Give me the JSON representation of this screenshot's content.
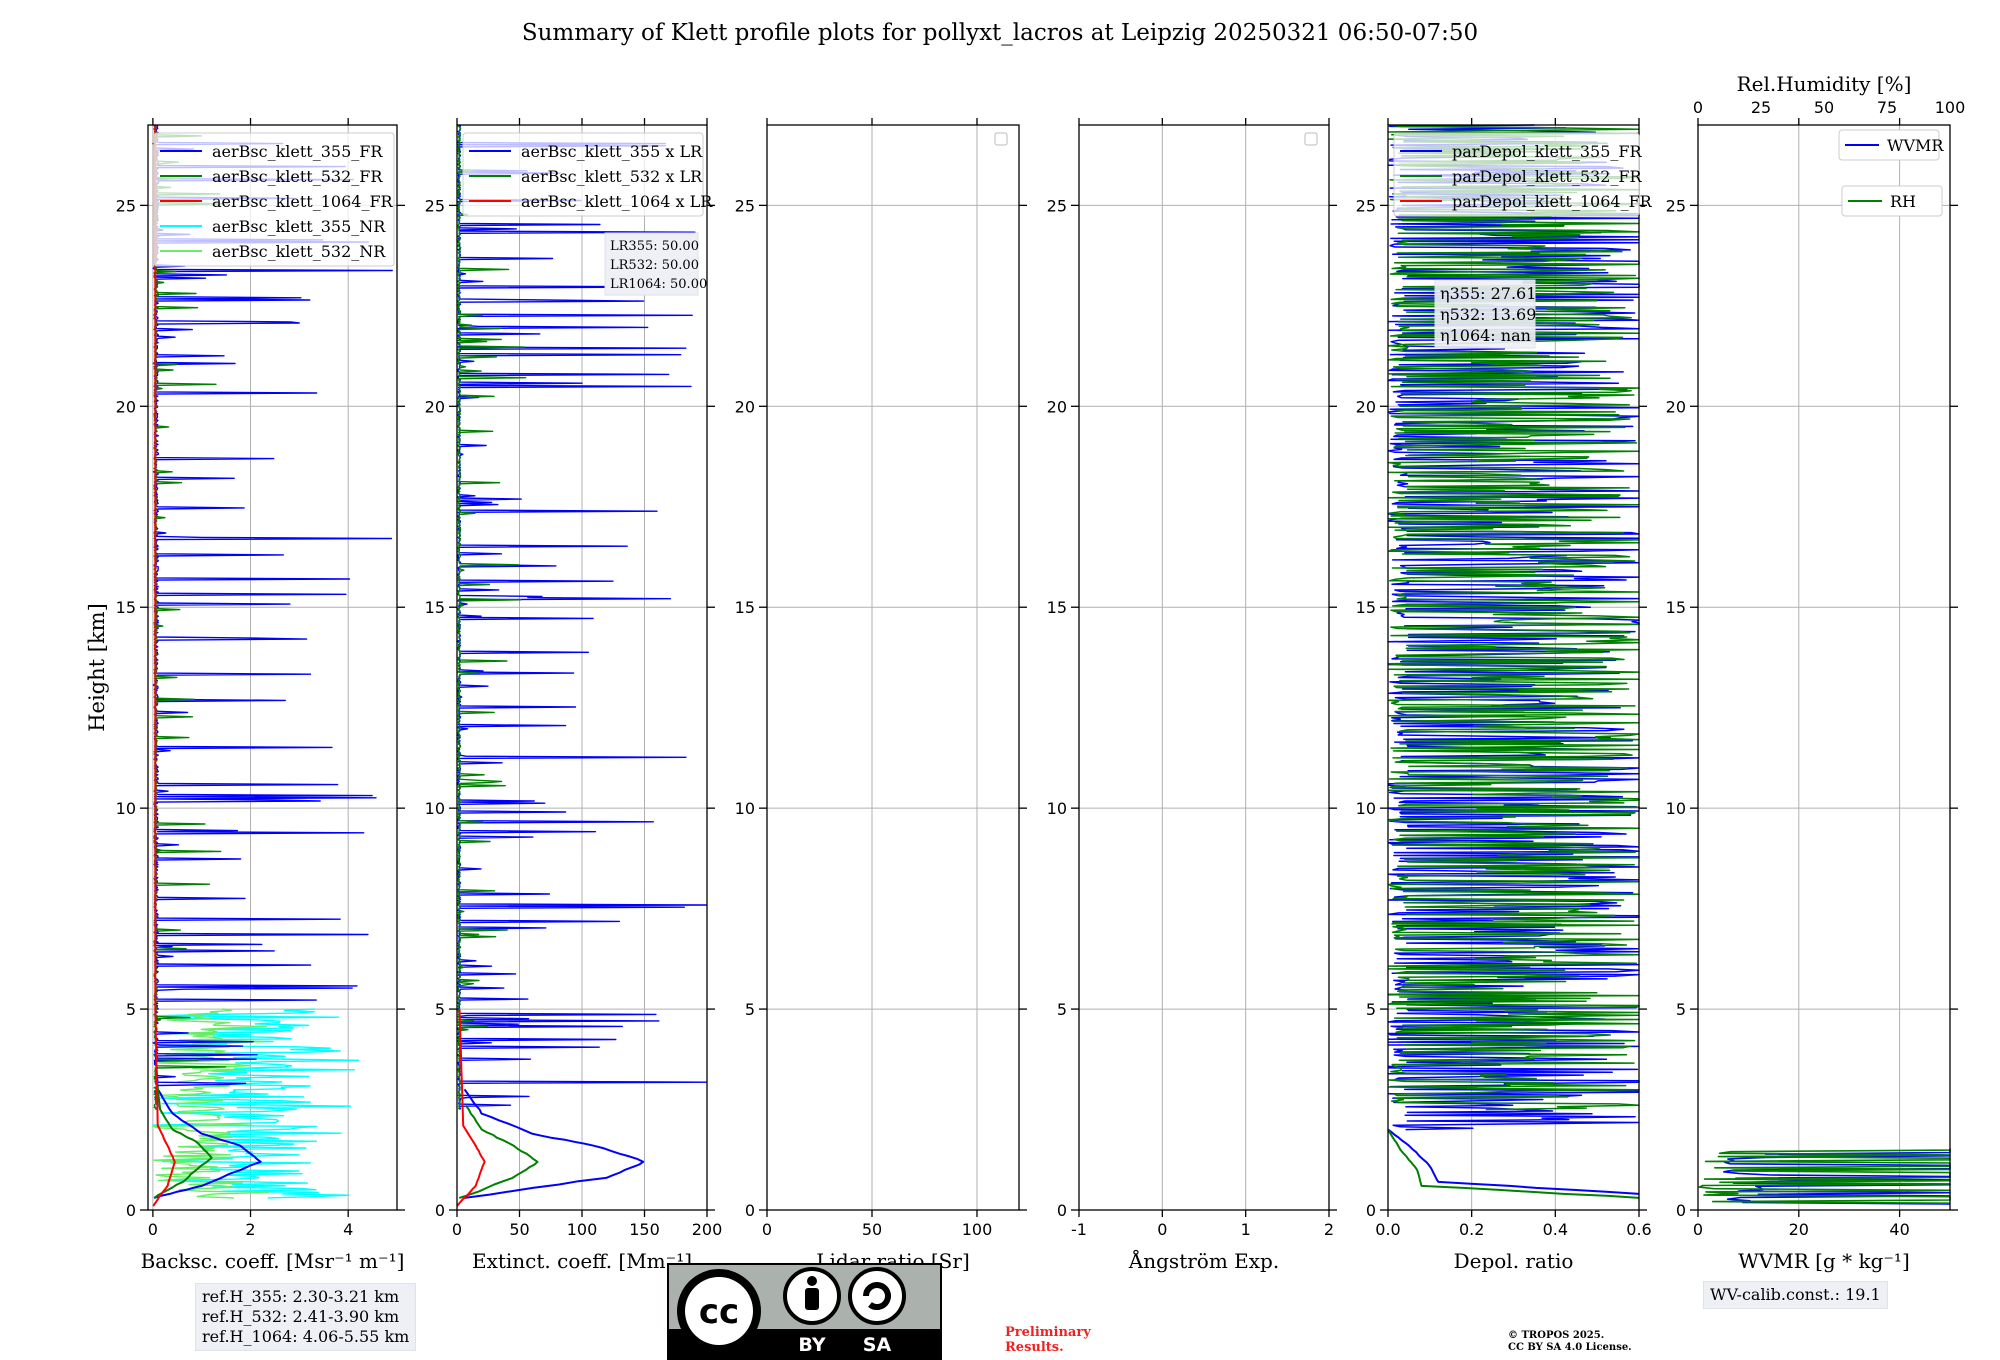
{
  "title": "Summary of Klett profile plots for pollyxt_lacros at Leipzig 20250321 06:50-07:50",
  "ylabel": "Height [km]",
  "ylim": [
    0,
    27
  ],
  "yticks": [
    0,
    5,
    10,
    15,
    20,
    25
  ],
  "colors": {
    "blue": "#0000ff",
    "green": "#008000",
    "red": "#ff0000",
    "cyan": "#00ffff",
    "lightgreen": "#66ee66"
  },
  "panels": [
    {
      "id": "backscatter",
      "xlabel": "Backsc. coeff. [Msr⁻¹ m⁻¹]",
      "xlim": [
        -0.1,
        5.0
      ],
      "xticks": [
        0,
        2,
        4
      ],
      "legend": [
        "aerBsc_klett_355_FR",
        "aerBsc_klett_532_FR",
        "aerBsc_klett_1064_FR",
        "aerBsc_klett_355_NR",
        "aerBsc_klett_532_NR"
      ]
    },
    {
      "id": "extinction",
      "xlabel": "Extinct. coeff. [Mm⁻¹]",
      "xlim": [
        0,
        200
      ],
      "xticks": [
        0,
        50,
        100,
        150,
        200
      ],
      "legend": [
        "aerBsc_klett_355 x LR",
        "aerBsc_klett_532 x LR",
        "aerBsc_klett_1064 x LR"
      ],
      "lr_box": [
        "LR355: 50.00",
        "LR532: 50.00",
        "LR1064: 50.00"
      ]
    },
    {
      "id": "lidar-ratio",
      "xlabel": "Lidar ratio [Sr]",
      "xlim": [
        0,
        120
      ],
      "xticks": [
        0,
        50,
        100
      ]
    },
    {
      "id": "angstrom",
      "xlabel": "Ångström Exp.",
      "xlim": [
        -1,
        2
      ],
      "xticks": [
        -1,
        0,
        1,
        2
      ]
    },
    {
      "id": "depol",
      "xlabel": "Depol. ratio",
      "xlim": [
        0.0,
        0.6
      ],
      "xticks": [
        "0.0",
        "0.2",
        "0.4",
        "0.6"
      ],
      "legend": [
        "parDepol_klett_355_FR",
        "parDepol_klett_532_FR",
        "parDepol_klett_1064_FR"
      ],
      "eta_box": [
        "η355: 27.61",
        "η532: 13.69",
        "η1064: nan"
      ]
    },
    {
      "id": "wvmr",
      "xlabel": "WVMR [g * kg⁻¹]",
      "xlim": [
        0,
        50
      ],
      "xticks": [
        0,
        20,
        40
      ],
      "top_xlabel": "Rel.Humidity [%]",
      "top_xticks": [
        0,
        25,
        50,
        75,
        100
      ],
      "legend": [
        "WVMR",
        "RH"
      ]
    }
  ],
  "chart_data": {
    "type": "line",
    "title": "Summary of Klett profile plots for pollyxt_lacros at Leipzig 20250321 06:50-07:50",
    "ylabel": "Height [km]",
    "ylim": [
      0,
      27
    ],
    "grid": true,
    "panels": [
      {
        "xlabel": "Backsc. coeff. [Msr⁻¹ m⁻¹]",
        "xlim": [
          -0.1,
          5.0
        ],
        "series": [
          {
            "name": "aerBsc_klett_355_FR",
            "x": [
              0.02,
              1.0,
              2.2,
              1.8,
              1.0,
              0.4,
              0.1,
              0.05
            ],
            "y": [
              0.3,
              0.6,
              1.2,
              1.6,
              1.9,
              2.4,
              3.0,
              4.0
            ]
          },
          {
            "name": "aerBsc_klett_532_FR",
            "x": [
              0.02,
              0.6,
              1.2,
              0.9,
              0.4,
              0.15,
              0.05
            ],
            "y": [
              0.3,
              0.7,
              1.3,
              1.7,
              2.0,
              2.5,
              3.5
            ]
          },
          {
            "name": "aerBsc_klett_1064_FR",
            "x": [
              0.0,
              0.3,
              0.45,
              0.3,
              0.1,
              0.05,
              0.05
            ],
            "y": [
              0.1,
              0.6,
              1.2,
              1.6,
              2.1,
              5.0,
              27.0
            ]
          },
          {
            "name": "aerBsc_klett_355_NR",
            "x": [
              4.7,
              2.0,
              2.5,
              3.5,
              3.8,
              4.8
            ],
            "y": [
              0.2,
              1.0,
              2.5,
              3.5,
              4.3,
              5.0
            ]
          },
          {
            "name": "aerBsc_klett_532_NR",
            "x": [
              1.8,
              1.0,
              1.2,
              1.5,
              1.6
            ],
            "y": [
              0.3,
              1.2,
              2.6,
              4.0,
              5.0
            ]
          }
        ]
      },
      {
        "xlabel": "Extinct. coeff. [Mm⁻¹]",
        "xlim": [
          0,
          200
        ],
        "series": [
          {
            "name": "aerBsc_klett_355 x LR",
            "x": [
              3,
              120,
              150,
              110,
              60,
              20,
              6
            ],
            "y": [
              0.3,
              0.8,
              1.2,
              1.6,
              1.9,
              2.4,
              3.0
            ]
          },
          {
            "name": "aerBsc_klett_532 x LR",
            "x": [
              3,
              45,
              65,
              45,
              20,
              7
            ],
            "y": [
              0.3,
              0.8,
              1.2,
              1.6,
              2.0,
              2.6
            ]
          },
          {
            "name": "aerBsc_klett_1064 x LR",
            "x": [
              0,
              15,
              22,
              15,
              5,
              2
            ],
            "y": [
              0.1,
              0.6,
              1.2,
              1.6,
              2.1,
              5.0
            ]
          }
        ]
      },
      {
        "xlabel": "Lidar ratio [Sr]",
        "xlim": [
          0,
          120
        ],
        "series": []
      },
      {
        "xlabel": "Ångström Exp.",
        "xlim": [
          -1,
          2
        ],
        "series": []
      },
      {
        "xlabel": "Depol. ratio",
        "xlim": [
          0.0,
          0.6
        ],
        "series": [
          {
            "name": "parDepol_klett_355_FR",
            "x": [
              0.6,
              0.12,
              0.1,
              0.05,
              0.0
            ],
            "y": [
              0.4,
              0.7,
              1.1,
              1.6,
              2.0
            ]
          },
          {
            "name": "parDepol_klett_532_FR",
            "x": [
              0.6,
              0.08,
              0.07,
              0.03,
              0.0
            ],
            "y": [
              0.3,
              0.6,
              1.0,
              1.5,
              2.0
            ]
          },
          {
            "name": "parDepol_klett_1064_FR",
            "x": [],
            "y": []
          }
        ]
      },
      {
        "xlabel": "WVMR [g * kg⁻¹]",
        "xlim": [
          0,
          50
        ],
        "series": [
          {
            "name": "WVMR",
            "x": [
              50,
              5,
              45,
              3
            ],
            "y": [
              0.2,
              0.6,
              1.0,
              1.5
            ]
          },
          {
            "name": "RH",
            "x": [
              50,
              2,
              48
            ],
            "y": [
              0.1,
              0.5,
              0.9
            ]
          }
        ]
      }
    ]
  },
  "ref_box": [
    "ref.H_355: 2.30-3.21 km",
    "ref.H_532: 2.41-3.90 km",
    "ref.H_1064: 4.06-5.55 km"
  ],
  "wv_calib": "WV-calib.const.: 19.1",
  "preliminary": "Preliminary Results.",
  "copyright": [
    "© TROPOS 2025.",
    "CC BY SA 4.0 License."
  ],
  "cc_logo": {
    "cc": "cc",
    "by": "BY",
    "sa": "SA"
  }
}
